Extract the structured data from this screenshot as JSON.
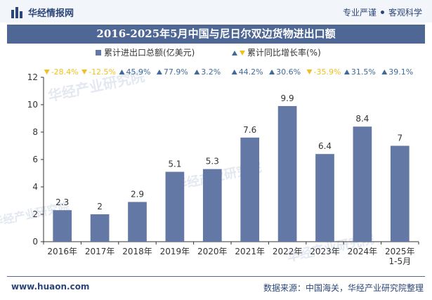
{
  "brand": {
    "name": "华经情报网",
    "tag1": "专业严谨",
    "tag2": "客观科学"
  },
  "title": "2016-2025年5月中国与尼日尔双边货物进出口额",
  "footer": {
    "site": "www.huaon.com",
    "source": "数据来源：中国海关，华经产业研究院整理"
  },
  "watermark": "华经产业研究院",
  "colors": {
    "bar": "#6478a6",
    "up": "#3f6a9a",
    "down": "#f0c020",
    "title_bg": "#4f6795",
    "text": "#2c4677"
  },
  "chart_data": {
    "type": "bar",
    "categories": [
      "2016年",
      "2017年",
      "2018年",
      "2019年",
      "2020年",
      "2021年",
      "2022年",
      "2023年",
      "2024年",
      "2025年\n1-5月"
    ],
    "series": [
      {
        "name": "累计进出口总额(亿美元)",
        "values": [
          2.3,
          2,
          2.9,
          5.1,
          5.3,
          7.6,
          9.9,
          6.4,
          8.4,
          7
        ]
      },
      {
        "name": "累计同比增长率(%)",
        "values": [
          -28.4,
          -12.5,
          45.9,
          77.9,
          3.2,
          44.2,
          30.6,
          -35.9,
          31.5,
          39.1
        ]
      }
    ],
    "growth_labels": [
      "-28.4%",
      "-12.5%",
      "45.9%",
      "77.9%",
      "3.2%",
      "44.2%",
      "30.6%",
      "-35.9%",
      "31.5%",
      "39.1%"
    ],
    "ylim": [
      0,
      12
    ],
    "yticks": [
      0,
      2,
      4,
      6,
      8,
      10,
      12
    ],
    "legend": "top-center",
    "grid": false
  }
}
